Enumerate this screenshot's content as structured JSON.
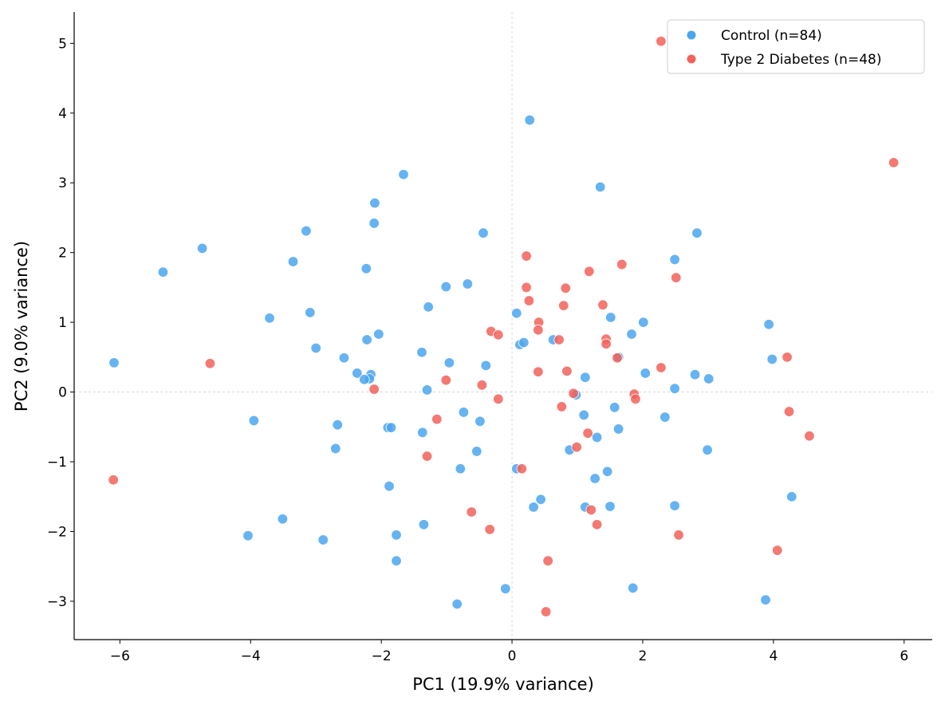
{
  "chart_data": {
    "type": "scatter",
    "title": "",
    "xlabel": "PC1 (19.9% variance)",
    "ylabel": "PC2 (9.0% variance)",
    "xlim": [
      -6.7,
      6.43
    ],
    "ylim": [
      -3.55,
      5.45
    ],
    "xticks": [
      -6,
      -4,
      -2,
      0,
      2,
      4,
      6
    ],
    "yticks": [
      -3,
      -2,
      -1,
      0,
      1,
      2,
      3,
      4,
      5
    ],
    "grid": false,
    "reference_lines": {
      "x": 0,
      "y": 0,
      "style": "dashed"
    },
    "legend_position": "top-right",
    "series": [
      {
        "name": "Control (n=84)",
        "color": "#4ba6ee",
        "points": [
          [
            0.27,
            3.9
          ],
          [
            -1.66,
            3.12
          ],
          [
            -2.1,
            2.71
          ],
          [
            -2.11,
            2.42
          ],
          [
            -3.15,
            2.31
          ],
          [
            -4.74,
            2.06
          ],
          [
            -5.34,
            1.72
          ],
          [
            -3.35,
            1.87
          ],
          [
            -2.23,
            1.77
          ],
          [
            -0.44,
            2.28
          ],
          [
            1.35,
            2.94
          ],
          [
            2.83,
            2.28
          ],
          [
            2.49,
            1.9
          ],
          [
            -1.01,
            1.51
          ],
          [
            -0.68,
            1.55
          ],
          [
            -1.28,
            1.22
          ],
          [
            -3.71,
            1.06
          ],
          [
            -3.09,
            1.14
          ],
          [
            -3.0,
            0.63
          ],
          [
            -2.04,
            0.83
          ],
          [
            -2.22,
            0.75
          ],
          [
            0.07,
            1.13
          ],
          [
            1.51,
            1.07
          ],
          [
            2.01,
            1.0
          ],
          [
            1.83,
            0.83
          ],
          [
            0.12,
            0.68
          ],
          [
            0.18,
            0.71
          ],
          [
            0.63,
            0.75
          ],
          [
            -1.38,
            0.57
          ],
          [
            -0.96,
            0.42
          ],
          [
            -2.57,
            0.49
          ],
          [
            -0.4,
            0.38
          ],
          [
            1.63,
            0.5
          ],
          [
            3.93,
            0.97
          ],
          [
            3.98,
            0.47
          ],
          [
            -6.09,
            0.42
          ],
          [
            -2.37,
            0.27
          ],
          [
            -2.16,
            0.25
          ],
          [
            -2.18,
            0.19
          ],
          [
            -2.26,
            0.18
          ],
          [
            -1.3,
            0.03
          ],
          [
            1.12,
            0.21
          ],
          [
            2.04,
            0.27
          ],
          [
            2.8,
            0.25
          ],
          [
            3.01,
            0.19
          ],
          [
            2.49,
            0.05
          ],
          [
            0.98,
            -0.04
          ],
          [
            -3.95,
            -0.41
          ],
          [
            -2.67,
            -0.47
          ],
          [
            -1.9,
            -0.51
          ],
          [
            -1.85,
            -0.51
          ],
          [
            -1.37,
            -0.58
          ],
          [
            -0.74,
            -0.29
          ],
          [
            -0.49,
            -0.42
          ],
          [
            1.1,
            -0.33
          ],
          [
            1.57,
            -0.22
          ],
          [
            2.34,
            -0.36
          ],
          [
            1.63,
            -0.53
          ],
          [
            1.3,
            -0.65
          ],
          [
            0.88,
            -0.83
          ],
          [
            -2.7,
            -0.81
          ],
          [
            -0.54,
            -0.85
          ],
          [
            2.99,
            -0.83
          ],
          [
            -0.79,
            -1.1
          ],
          [
            0.07,
            -1.1
          ],
          [
            1.27,
            -1.24
          ],
          [
            1.46,
            -1.14
          ],
          [
            -1.88,
            -1.35
          ],
          [
            0.44,
            -1.54
          ],
          [
            0.33,
            -1.65
          ],
          [
            1.12,
            -1.65
          ],
          [
            1.5,
            -1.64
          ],
          [
            2.49,
            -1.63
          ],
          [
            4.28,
            -1.5
          ],
          [
            -3.51,
            -1.82
          ],
          [
            -4.04,
            -2.06
          ],
          [
            -2.89,
            -2.12
          ],
          [
            -1.77,
            -2.05
          ],
          [
            -1.35,
            -1.9
          ],
          [
            -1.77,
            -2.42
          ],
          [
            -0.1,
            -2.82
          ],
          [
            1.85,
            -2.81
          ],
          [
            -0.84,
            -3.04
          ],
          [
            3.88,
            -2.98
          ]
        ]
      },
      {
        "name": "Type 2 Diabetes (n=48)",
        "color": "#f2625a",
        "points": [
          [
            2.28,
            5.03
          ],
          [
            5.84,
            3.29
          ],
          [
            0.22,
            1.95
          ],
          [
            1.68,
            1.83
          ],
          [
            1.18,
            1.73
          ],
          [
            2.51,
            1.64
          ],
          [
            0.22,
            1.5
          ],
          [
            0.82,
            1.49
          ],
          [
            0.26,
            1.31
          ],
          [
            1.39,
            1.25
          ],
          [
            0.79,
            1.24
          ],
          [
            0.41,
            1.0
          ],
          [
            -0.32,
            0.87
          ],
          [
            -0.21,
            0.82
          ],
          [
            0.4,
            0.89
          ],
          [
            0.72,
            0.75
          ],
          [
            1.44,
            0.76
          ],
          [
            1.44,
            0.69
          ],
          [
            1.61,
            0.49
          ],
          [
            4.21,
            0.5
          ],
          [
            -4.62,
            0.41
          ],
          [
            -1.01,
            0.17
          ],
          [
            2.28,
            0.35
          ],
          [
            0.4,
            0.29
          ],
          [
            0.84,
            0.3
          ],
          [
            -2.11,
            0.04
          ],
          [
            -0.46,
            0.1
          ],
          [
            -0.21,
            -0.1
          ],
          [
            0.94,
            -0.02
          ],
          [
            1.87,
            -0.03
          ],
          [
            1.89,
            -0.1
          ],
          [
            0.76,
            -0.21
          ],
          [
            -1.15,
            -0.39
          ],
          [
            4.24,
            -0.28
          ],
          [
            4.55,
            -0.63
          ],
          [
            1.16,
            -0.59
          ],
          [
            0.99,
            -0.79
          ],
          [
            -1.3,
            -0.92
          ],
          [
            0.15,
            -1.1
          ],
          [
            -0.62,
            -1.72
          ],
          [
            -0.34,
            -1.97
          ],
          [
            1.21,
            -1.69
          ],
          [
            1.3,
            -1.9
          ],
          [
            2.55,
            -2.05
          ],
          [
            4.06,
            -2.27
          ],
          [
            0.55,
            -2.42
          ],
          [
            0.52,
            -3.15
          ],
          [
            -6.1,
            -1.26
          ]
        ]
      }
    ]
  }
}
